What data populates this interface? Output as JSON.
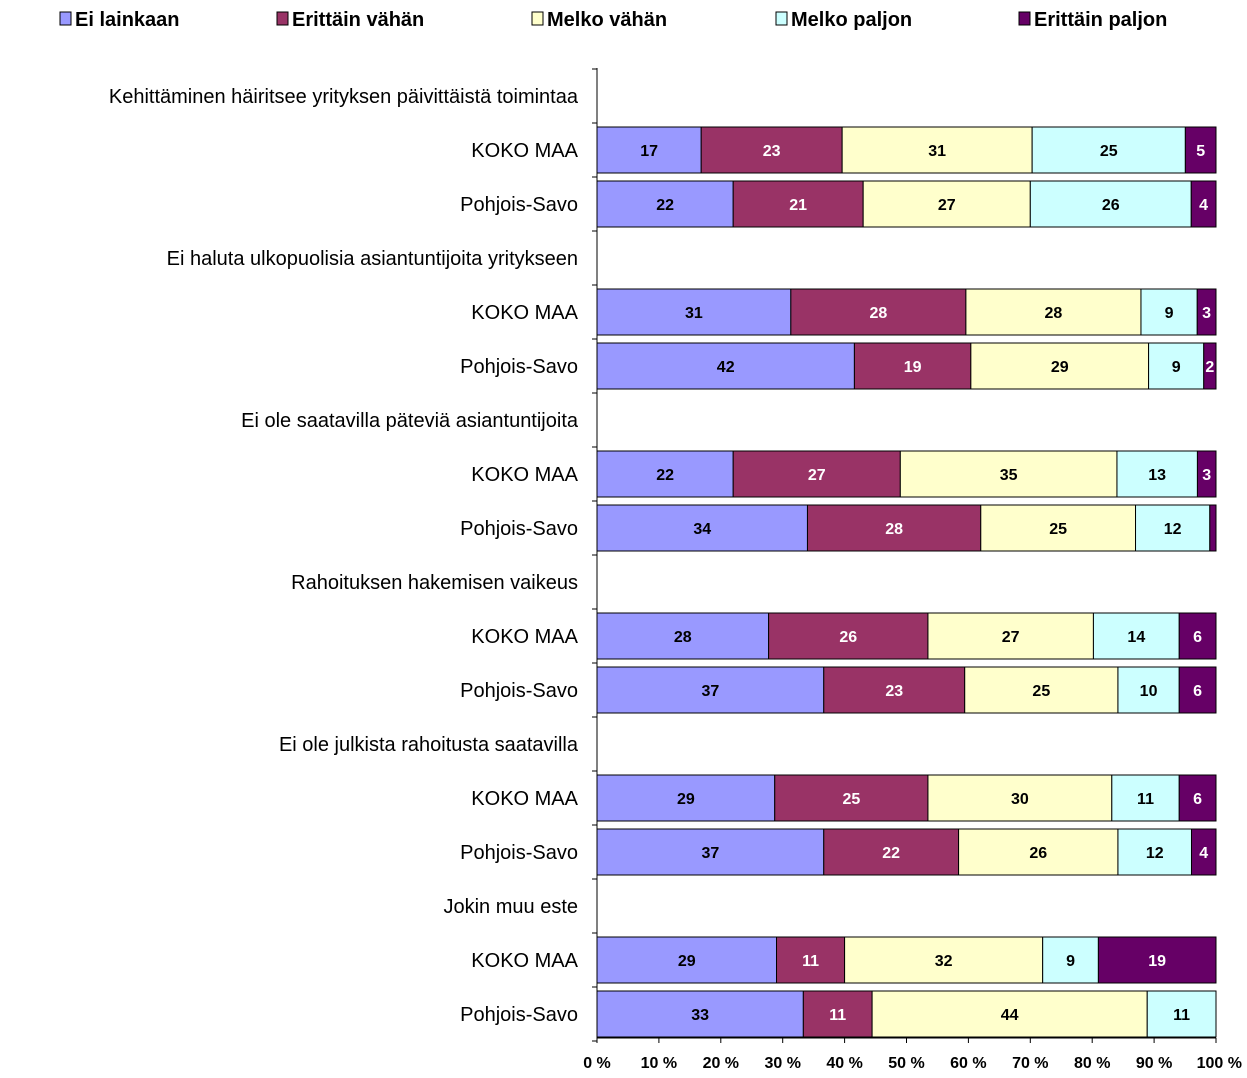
{
  "chart_data": {
    "type": "bar",
    "orientation": "horizontal",
    "stacked": "percent",
    "legend_position": "top",
    "grid": false,
    "xlim": [
      0,
      100
    ],
    "x_ticks": [
      "0 %",
      "10 %",
      "20 %",
      "30 %",
      "40 %",
      "50 %",
      "60 %",
      "70 %",
      "80 %",
      "90 %",
      "100 %"
    ],
    "series": [
      {
        "name": "Ei lainkaan",
        "color": "#9999ff",
        "label_color": "#000000"
      },
      {
        "name": "Erittäin vähän",
        "color": "#993366",
        "label_color": "#ffffff"
      },
      {
        "name": "Melko vähän",
        "color": "#ffffcc",
        "label_color": "#000000"
      },
      {
        "name": "Melko paljon",
        "color": "#ccffff",
        "label_color": "#000000"
      },
      {
        "name": "Erittäin paljon",
        "color": "#660066",
        "label_color": "#ffffff"
      }
    ],
    "groups": [
      {
        "title": "Kehittäminen häiritsee yrityksen päivittäistä toimintaa",
        "rows": [
          {
            "label": "KOKO MAA",
            "values": [
              17,
              23,
              31,
              25,
              5
            ],
            "labels": [
              "17",
              "23",
              "31",
              "25",
              "5"
            ]
          },
          {
            "label": "Pohjois-Savo",
            "values": [
              22,
              21,
              27,
              26,
              4
            ],
            "labels": [
              "22",
              "21",
              "27",
              "26",
              "4"
            ]
          }
        ]
      },
      {
        "title": "Ei haluta ulkopuolisia asiantuntijoita yritykseen",
        "rows": [
          {
            "label": "KOKO MAA",
            "values": [
              31,
              28,
              28,
              9,
              3
            ],
            "labels": [
              "31",
              "28",
              "28",
              "9",
              "3"
            ]
          },
          {
            "label": "Pohjois-Savo",
            "values": [
              42,
              19,
              29,
              9,
              2
            ],
            "labels": [
              "42",
              "19",
              "29",
              "9",
              "2"
            ]
          }
        ]
      },
      {
        "title": "Ei ole saatavilla päteviä asiantuntijoita",
        "rows": [
          {
            "label": "KOKO MAA",
            "values": [
              22,
              27,
              35,
              13,
              3
            ],
            "labels": [
              "22",
              "27",
              "35",
              "13",
              "3"
            ]
          },
          {
            "label": "Pohjois-Savo",
            "values": [
              34,
              28,
              25,
              12,
              1
            ],
            "labels": [
              "34",
              "28",
              "25",
              "12",
              ""
            ]
          }
        ]
      },
      {
        "title": "Rahoituksen hakemisen vaikeus",
        "rows": [
          {
            "label": "KOKO MAA",
            "values": [
              28,
              26,
              27,
              14,
              6
            ],
            "labels": [
              "28",
              "26",
              "27",
              "14",
              "6"
            ]
          },
          {
            "label": "Pohjois-Savo",
            "values": [
              37,
              23,
              25,
              10,
              6
            ],
            "labels": [
              "37",
              "23",
              "25",
              "10",
              "6"
            ]
          }
        ]
      },
      {
        "title": "Ei ole julkista rahoitusta saatavilla",
        "rows": [
          {
            "label": "KOKO MAA",
            "values": [
              29,
              25,
              30,
              11,
              6
            ],
            "labels": [
              "29",
              "25",
              "30",
              "11",
              "6"
            ]
          },
          {
            "label": "Pohjois-Savo",
            "values": [
              37,
              22,
              26,
              12,
              4
            ],
            "labels": [
              "37",
              "22",
              "26",
              "12",
              "4"
            ]
          }
        ]
      },
      {
        "title": "Jokin muu este",
        "rows": [
          {
            "label": "KOKO MAA",
            "values": [
              29,
              11,
              32,
              9,
              19
            ],
            "labels": [
              "29",
              "11",
              "32",
              "9",
              "19"
            ]
          },
          {
            "label": "Pohjois-Savo",
            "values": [
              33,
              11,
              44,
              11,
              0
            ],
            "labels": [
              "33",
              "11",
              "44",
              "11",
              ""
            ]
          }
        ]
      }
    ]
  }
}
